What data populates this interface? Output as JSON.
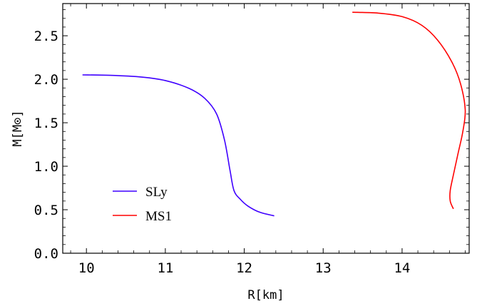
{
  "chart_data": {
    "type": "line",
    "xlabel": "R[km]",
    "ylabel": "M[M⊙]",
    "xlim": [
      9.7,
      14.85
    ],
    "ylim": [
      0.0,
      2.87
    ],
    "x_ticks": [
      "10",
      "11",
      "12",
      "13",
      "14"
    ],
    "y_ticks": [
      "0.0",
      "0.5",
      "1.0",
      "1.5",
      "2.0",
      "2.5"
    ],
    "legend_position": "lower-left",
    "series": [
      {
        "name": "SLy",
        "color": "#3f00ff",
        "points": [
          [
            9.95,
            2.05
          ],
          [
            10.3,
            2.045
          ],
          [
            10.7,
            2.025
          ],
          [
            11.0,
            1.985
          ],
          [
            11.3,
            1.895
          ],
          [
            11.5,
            1.78
          ],
          [
            11.65,
            1.6
          ],
          [
            11.75,
            1.3
          ],
          [
            11.82,
            0.95
          ],
          [
            11.87,
            0.72
          ],
          [
            11.95,
            0.62
          ],
          [
            12.05,
            0.54
          ],
          [
            12.2,
            0.47
          ],
          [
            12.38,
            0.43
          ]
        ]
      },
      {
        "name": "MS1",
        "color": "#ff0000",
        "points": [
          [
            13.37,
            2.77
          ],
          [
            13.7,
            2.76
          ],
          [
            14.0,
            2.72
          ],
          [
            14.25,
            2.62
          ],
          [
            14.45,
            2.45
          ],
          [
            14.63,
            2.2
          ],
          [
            14.74,
            1.95
          ],
          [
            14.8,
            1.65
          ],
          [
            14.77,
            1.4
          ],
          [
            14.71,
            1.15
          ],
          [
            14.65,
            0.9
          ],
          [
            14.61,
            0.72
          ],
          [
            14.61,
            0.6
          ],
          [
            14.65,
            0.51
          ]
        ]
      }
    ]
  }
}
